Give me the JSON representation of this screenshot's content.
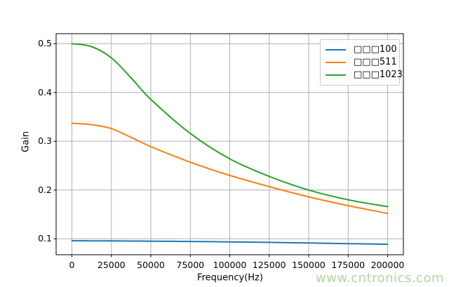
{
  "chart_data": {
    "type": "line",
    "title": "",
    "xlabel": "Frequency(Hz)",
    "ylabel": "Gain",
    "grid": true,
    "legend_position": "upper right",
    "xlim": [
      -10000,
      210000
    ],
    "ylim": [
      0.0674,
      0.5206
    ],
    "xticks": {
      "values": [
        0,
        25000,
        50000,
        75000,
        100000,
        125000,
        150000,
        175000,
        200000
      ],
      "labels": [
        "0",
        "25000",
        "50000",
        "75000",
        "100000",
        "125000",
        "150000",
        "175000",
        "200000"
      ]
    },
    "yticks": {
      "values": [
        0.1,
        0.2,
        0.3,
        0.4,
        0.5
      ],
      "labels": [
        "0.1",
        "0.2",
        "0.3",
        "0.4",
        "0.5"
      ]
    },
    "x": [
      0,
      12500,
      25000,
      37500,
      50000,
      75000,
      100000,
      125000,
      150000,
      175000,
      200000
    ],
    "series": [
      {
        "name": "□□□100",
        "color": "#1f77b4",
        "values": [
          0.096,
          0.0959,
          0.0957,
          0.0955,
          0.0952,
          0.0946,
          0.0938,
          0.0927,
          0.0914,
          0.0901,
          0.0888
        ]
      },
      {
        "name": "□□□511",
        "color": "#ff7f0e",
        "values": [
          0.337,
          0.334,
          0.326,
          0.308,
          0.289,
          0.257,
          0.23,
          0.207,
          0.186,
          0.168,
          0.152
        ]
      },
      {
        "name": "□□□1023",
        "color": "#2ca02c",
        "values": [
          0.5,
          0.494,
          0.471,
          0.43,
          0.386,
          0.316,
          0.264,
          0.228,
          0.2,
          0.18,
          0.166
        ]
      }
    ]
  },
  "watermark": {
    "text": "www.cntronics.com",
    "color": "#aed89e"
  },
  "colors": {
    "background": "#ffffff",
    "grid": "#b0b0b0",
    "spine": "#000000",
    "tick": "#000000",
    "legend_border": "#cccccc"
  }
}
